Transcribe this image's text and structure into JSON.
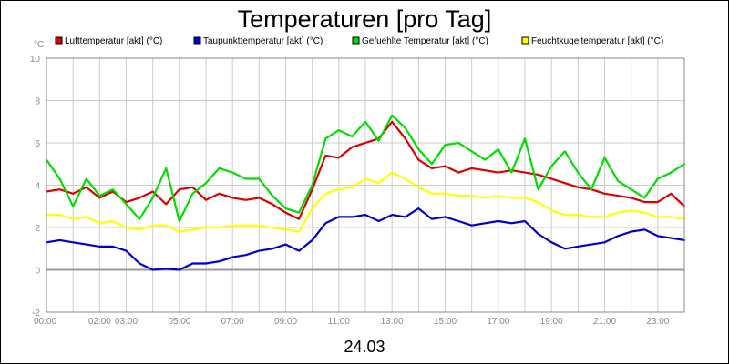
{
  "chart_data": {
    "type": "line",
    "title": "Temperaturen [pro Tag]",
    "ylabel": "°C",
    "xlabel": "24.03",
    "ylim": [
      -2,
      10
    ],
    "xlim_hours": [
      0,
      24
    ],
    "y_ticks": [
      -2,
      0,
      2,
      4,
      6,
      8,
      10
    ],
    "x_ticks": [
      {
        "label": "00:00",
        "hour": 0
      },
      {
        "label": "02:00",
        "hour": 2
      },
      {
        "label": "03:00",
        "hour": 3
      },
      {
        "label": "05:00",
        "hour": 5
      },
      {
        "label": "07:00",
        "hour": 7
      },
      {
        "label": "09:00",
        "hour": 9
      },
      {
        "label": "11:00",
        "hour": 11
      },
      {
        "label": "13:00",
        "hour": 13
      },
      {
        "label": "15:00",
        "hour": 15
      },
      {
        "label": "17:00",
        "hour": 17
      },
      {
        "label": "19:00",
        "hour": 19
      },
      {
        "label": "21:00",
        "hour": 21
      },
      {
        "label": "23:00",
        "hour": 23
      }
    ],
    "grid": true,
    "legend_position": "top",
    "x": [
      0,
      0.5,
      1,
      1.5,
      2,
      2.5,
      3,
      3.5,
      4,
      4.5,
      5,
      5.5,
      6,
      6.5,
      7,
      7.5,
      8,
      8.5,
      9,
      9.5,
      10,
      10.5,
      11,
      11.5,
      12,
      12.5,
      13,
      13.5,
      14,
      14.5,
      15,
      15.5,
      16,
      16.5,
      17,
      17.5,
      18,
      18.5,
      19,
      19.5,
      20,
      20.5,
      21,
      21.5,
      22,
      22.5,
      23,
      23.5,
      24
    ],
    "series": [
      {
        "name": "Lufttemperatur [akt] (°C)",
        "color": "#dd0000",
        "values": [
          3.7,
          3.8,
          3.6,
          3.9,
          3.4,
          3.7,
          3.2,
          3.4,
          3.7,
          3.1,
          3.8,
          3.9,
          3.3,
          3.6,
          3.4,
          3.3,
          3.4,
          3.1,
          2.7,
          2.4,
          3.8,
          5.4,
          5.3,
          5.8,
          6.0,
          6.2,
          7.0,
          6.2,
          5.2,
          4.8,
          4.9,
          4.6,
          4.8,
          4.7,
          4.6,
          4.7,
          4.6,
          4.5,
          4.3,
          4.1,
          3.9,
          3.8,
          3.6,
          3.5,
          3.4,
          3.2,
          3.2,
          3.6,
          3.0
        ]
      },
      {
        "name": "Taupunkttemperatur [akt] (°C)",
        "color": "#0000cc",
        "values": [
          1.3,
          1.4,
          1.3,
          1.2,
          1.1,
          1.1,
          0.9,
          0.3,
          0.0,
          0.05,
          0.0,
          0.3,
          0.3,
          0.4,
          0.6,
          0.7,
          0.9,
          1.0,
          1.2,
          0.9,
          1.4,
          2.2,
          2.5,
          2.5,
          2.6,
          2.3,
          2.6,
          2.5,
          2.9,
          2.4,
          2.5,
          2.3,
          2.1,
          2.2,
          2.3,
          2.2,
          2.3,
          1.7,
          1.3,
          1.0,
          1.1,
          1.2,
          1.3,
          1.6,
          1.8,
          1.9,
          1.6,
          1.5,
          1.4
        ]
      },
      {
        "name": "Gefuehlte Temperatur [akt] (°C)",
        "color": "#00dd00",
        "values": [
          5.2,
          4.3,
          3.0,
          4.3,
          3.5,
          3.8,
          3.1,
          2.4,
          3.4,
          4.8,
          2.3,
          3.6,
          4.1,
          4.8,
          4.6,
          4.3,
          4.3,
          3.5,
          2.9,
          2.7,
          4.0,
          6.2,
          6.6,
          6.3,
          7.0,
          6.1,
          7.3,
          6.7,
          5.7,
          5.0,
          5.9,
          6.0,
          5.6,
          5.2,
          5.7,
          4.6,
          6.2,
          3.8,
          4.9,
          5.6,
          4.6,
          3.8,
          5.3,
          4.2,
          3.8,
          3.4,
          4.3,
          4.6,
          5.0
        ]
      },
      {
        "name": "Feuchtkugeltemperatur [akt] (°C)",
        "color": "#ffff00",
        "values": [
          2.6,
          2.6,
          2.4,
          2.5,
          2.2,
          2.3,
          2.0,
          1.9,
          2.1,
          2.1,
          1.8,
          1.9,
          2.0,
          2.0,
          2.1,
          2.1,
          2.1,
          2.0,
          1.9,
          1.8,
          2.9,
          3.6,
          3.8,
          3.9,
          4.3,
          4.1,
          4.6,
          4.3,
          3.9,
          3.6,
          3.6,
          3.5,
          3.5,
          3.4,
          3.5,
          3.4,
          3.4,
          3.2,
          2.8,
          2.6,
          2.6,
          2.5,
          2.5,
          2.7,
          2.8,
          2.7,
          2.5,
          2.5,
          2.4
        ]
      }
    ]
  }
}
